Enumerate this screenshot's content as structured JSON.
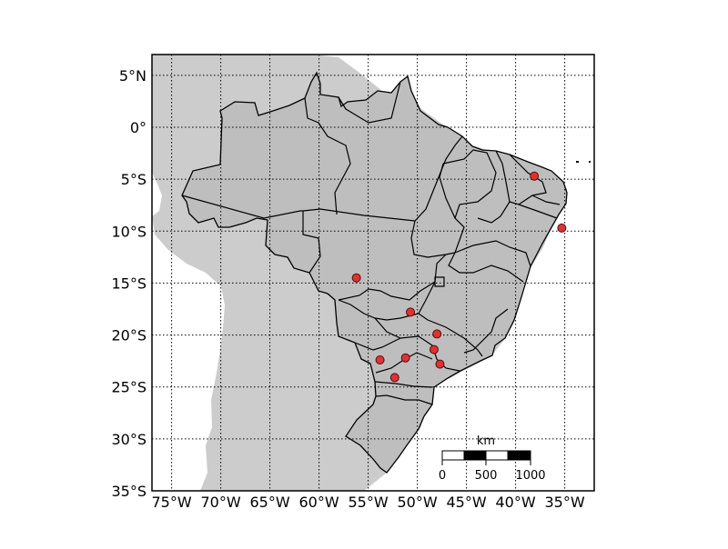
{
  "map": {
    "lon_range": [
      -77,
      -32
    ],
    "lat_range": [
      -35,
      7
    ],
    "grid": "dotted",
    "background_color": "#ffffff",
    "sea_color": "#ffffff",
    "land_color": "#cccccc",
    "country_color": "#bebebe",
    "border_color": "#000000",
    "marker_fill": "#dd3333",
    "marker_edge": "#5a0d0d"
  },
  "axes": {
    "lat_ticks": [
      {
        "value": 5,
        "label": "5°N"
      },
      {
        "value": 0,
        "label": "0°"
      },
      {
        "value": -5,
        "label": "5°S"
      },
      {
        "value": -10,
        "label": "10°S"
      },
      {
        "value": -15,
        "label": "15°S"
      },
      {
        "value": -20,
        "label": "20°S"
      },
      {
        "value": -25,
        "label": "25°S"
      },
      {
        "value": -30,
        "label": "30°S"
      },
      {
        "value": -35,
        "label": "35°S"
      }
    ],
    "lon_ticks": [
      {
        "value": -75,
        "label": "75°W"
      },
      {
        "value": -70,
        "label": "70°W"
      },
      {
        "value": -65,
        "label": "65°W"
      },
      {
        "value": -60,
        "label": "60°W"
      },
      {
        "value": -55,
        "label": "55°W"
      },
      {
        "value": -50,
        "label": "50°W"
      },
      {
        "value": -45,
        "label": "45°W"
      },
      {
        "value": -40,
        "label": "40°W"
      },
      {
        "value": -35,
        "label": "35°W"
      }
    ]
  },
  "scale_bar": {
    "unit": "km",
    "labels": [
      "0",
      "500",
      "1000"
    ],
    "length_km": 1000
  },
  "locations": [
    {
      "lon": -38.1,
      "lat": -4.7
    },
    {
      "lon": -35.3,
      "lat": -9.7
    },
    {
      "lon": -56.2,
      "lat": -14.5
    },
    {
      "lon": -50.7,
      "lat": -17.8
    },
    {
      "lon": -48.0,
      "lat": -19.9
    },
    {
      "lon": -48.3,
      "lat": -21.4
    },
    {
      "lon": -47.7,
      "lat": -22.8
    },
    {
      "lon": -51.2,
      "lat": -22.2
    },
    {
      "lon": -53.8,
      "lat": -22.4
    },
    {
      "lon": -52.3,
      "lat": -24.1
    }
  ]
}
